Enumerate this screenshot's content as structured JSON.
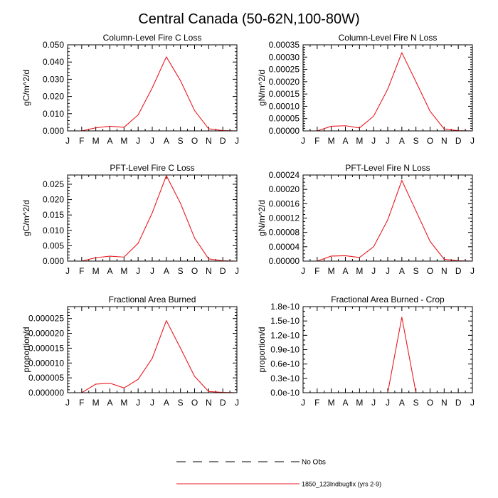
{
  "figure": {
    "title": "Central Canada (50-62N,100-80W)"
  },
  "legend": {
    "items": [
      {
        "label": "No Obs",
        "style": "dashed",
        "color": "#000000"
      },
      {
        "label": "1850_123lndbugfix (yrs 2-9)",
        "style": "solid",
        "color": "#e8191f"
      }
    ]
  },
  "colors": {
    "series": "#e8191f",
    "axis": "#000000"
  },
  "chart_data": [
    {
      "type": "line",
      "title": "Column-Level Fire C Loss",
      "xlabel": "",
      "ylabel": "gC/m^2/d",
      "categories": [
        "J",
        "F",
        "M",
        "A",
        "M",
        "J",
        "J",
        "A",
        "S",
        "O",
        "N",
        "D",
        "J"
      ],
      "ylim": [
        0,
        0.05
      ],
      "yticks": [
        {
          "value": 0,
          "label": "0.000"
        },
        {
          "value": 0.01,
          "label": "0.010"
        },
        {
          "value": 0.02,
          "label": "0.020"
        },
        {
          "value": 0.03,
          "label": "0.030"
        },
        {
          "value": 0.04,
          "label": "0.040"
        },
        {
          "value": 0.05,
          "label": "0.050"
        }
      ],
      "yminor": [
        0.002,
        0.004,
        0.006,
        0.008,
        0.012,
        0.014,
        0.016,
        0.018,
        0.022,
        0.024,
        0.026,
        0.028,
        0.032,
        0.034,
        0.036,
        0.038,
        0.042,
        0.044,
        0.046,
        0.048
      ],
      "series": [
        {
          "name": "1850_123lndbugfix (yrs 2-9)",
          "values": [
            0,
            0,
            0.0018,
            0.0027,
            0.0021,
            0.0093,
            0.025,
            0.043,
            0.0292,
            0.0118,
            0.0012,
            0.0002,
            0
          ]
        }
      ]
    },
    {
      "type": "line",
      "title": "Column-Level Fire N Loss",
      "xlabel": "",
      "ylabel": "gN/m^2/d",
      "categories": [
        "J",
        "F",
        "M",
        "A",
        "M",
        "J",
        "J",
        "A",
        "S",
        "O",
        "N",
        "D",
        "J"
      ],
      "ylim": [
        0,
        0.00035
      ],
      "yticks": [
        {
          "value": 0,
          "label": "0.00000"
        },
        {
          "value": 5e-05,
          "label": "0.00005"
        },
        {
          "value": 0.0001,
          "label": "0.00010"
        },
        {
          "value": 0.00015,
          "label": "0.00015"
        },
        {
          "value": 0.0002,
          "label": "0.00020"
        },
        {
          "value": 0.00025,
          "label": "0.00025"
        },
        {
          "value": 0.0003,
          "label": "0.00030"
        },
        {
          "value": 0.00035,
          "label": "0.00035"
        }
      ],
      "yminor": [
        1e-05,
        2e-05,
        3e-05,
        4e-05,
        6e-05,
        7e-05,
        8e-05,
        9e-05,
        0.00011,
        0.00012,
        0.00013,
        0.00014,
        0.00016,
        0.00017,
        0.00018,
        0.00019,
        0.00021,
        0.00022,
        0.00023,
        0.00024,
        0.00026,
        0.00027,
        0.00028,
        0.00029,
        0.00031,
        0.00032,
        0.00033,
        0.00034
      ],
      "series": [
        {
          "name": "1850_123lndbugfix (yrs 2-9)",
          "values": [
            0,
            0,
            1.9e-05,
            2.1e-05,
            1.2e-05,
            6e-05,
            0.00017,
            0.000318,
            0.0002,
            8e-05,
            8e-06,
            1e-06,
            0
          ]
        }
      ]
    },
    {
      "type": "line",
      "title": "PFT-Level Fire C Loss",
      "xlabel": "",
      "ylabel": "gC/m^2/d",
      "categories": [
        "J",
        "F",
        "M",
        "A",
        "M",
        "J",
        "J",
        "A",
        "S",
        "O",
        "N",
        "D",
        "J"
      ],
      "ylim": [
        0,
        0.028
      ],
      "yticks": [
        {
          "value": 0,
          "label": "0.000"
        },
        {
          "value": 0.005,
          "label": "0.005"
        },
        {
          "value": 0.01,
          "label": "0.010"
        },
        {
          "value": 0.015,
          "label": "0.015"
        },
        {
          "value": 0.02,
          "label": "0.020"
        },
        {
          "value": 0.025,
          "label": "0.025"
        }
      ],
      "yminor": [
        0.001,
        0.002,
        0.003,
        0.004,
        0.006,
        0.007,
        0.008,
        0.009,
        0.011,
        0.012,
        0.013,
        0.014,
        0.016,
        0.017,
        0.018,
        0.019,
        0.021,
        0.022,
        0.023,
        0.024,
        0.026,
        0.027
      ],
      "series": [
        {
          "name": "1850_123lndbugfix (yrs 2-9)",
          "values": [
            0,
            0,
            0.0011,
            0.0016,
            0.0013,
            0.0058,
            0.0157,
            0.0278,
            0.0188,
            0.0075,
            0.0007,
            0.0001,
            0
          ]
        }
      ]
    },
    {
      "type": "line",
      "title": "PFT-Level Fire N Loss",
      "xlabel": "",
      "ylabel": "gN/m^2/d",
      "categories": [
        "J",
        "F",
        "M",
        "A",
        "M",
        "J",
        "J",
        "A",
        "S",
        "O",
        "N",
        "D",
        "J"
      ],
      "ylim": [
        0,
        0.00024
      ],
      "yticks": [
        {
          "value": 0,
          "label": "0.00000"
        },
        {
          "value": 4e-05,
          "label": "0.00004"
        },
        {
          "value": 8e-05,
          "label": "0.00008"
        },
        {
          "value": 0.00012,
          "label": "0.00012"
        },
        {
          "value": 0.00016,
          "label": "0.00016"
        },
        {
          "value": 0.0002,
          "label": "0.00020"
        },
        {
          "value": 0.00024,
          "label": "0.00024"
        }
      ],
      "yminor": [
        1e-05,
        2e-05,
        3e-05,
        5e-05,
        6e-05,
        7e-05,
        9e-05,
        0.0001,
        0.00011,
        0.00013,
        0.00014,
        0.00015,
        0.00017,
        0.00018,
        0.00019,
        0.00021,
        0.00022,
        0.00023
      ],
      "series": [
        {
          "name": "1850_123lndbugfix (yrs 2-9)",
          "values": [
            0,
            0,
            1.4e-05,
            1.5e-05,
            1e-05,
            4e-05,
            0.000115,
            0.000225,
            0.00014,
            5.5e-05,
            5e-06,
            1e-06,
            0
          ]
        }
      ]
    },
    {
      "type": "line",
      "title": "Fractional Area Burned",
      "xlabel": "",
      "ylabel": "proportion/d",
      "categories": [
        "J",
        "F",
        "M",
        "A",
        "M",
        "J",
        "J",
        "A",
        "S",
        "O",
        "N",
        "D",
        "J"
      ],
      "ylim": [
        0,
        2.9e-05
      ],
      "yticks": [
        {
          "value": 0,
          "label": "0.000000"
        },
        {
          "value": 5e-06,
          "label": "0.000005"
        },
        {
          "value": 1e-05,
          "label": "0.000010"
        },
        {
          "value": 1.5e-05,
          "label": "0.000015"
        },
        {
          "value": 2e-05,
          "label": "0.000020"
        },
        {
          "value": 2.5e-05,
          "label": "0.000025"
        }
      ],
      "yminor": [
        1e-06,
        2e-06,
        3e-06,
        4e-06,
        6e-06,
        7e-06,
        8e-06,
        9e-06,
        1.1e-05,
        1.2e-05,
        1.3e-05,
        1.4e-05,
        1.6e-05,
        1.7e-05,
        1.8e-05,
        1.9e-05,
        2.1e-05,
        2.2e-05,
        2.3e-05,
        2.4e-05,
        2.6e-05,
        2.7e-05,
        2.8e-05
      ],
      "series": [
        {
          "name": "1850_123lndbugfix (yrs 2-9)",
          "values": [
            0,
            0,
            2.9e-06,
            3.2e-06,
            1.6e-06,
            4.5e-06,
            1.16e-05,
            2.43e-05,
            1.5e-05,
            5.5e-06,
            4e-07,
            1e-07,
            0
          ]
        }
      ]
    },
    {
      "type": "line",
      "title": "Fractional Area Burned - Crop",
      "xlabel": "",
      "ylabel": "proportion/d",
      "categories": [
        "J",
        "F",
        "M",
        "A",
        "M",
        "J",
        "J",
        "A",
        "S",
        "O",
        "N",
        "D",
        "J"
      ],
      "ylim": [
        0,
        1.8e-10
      ],
      "yticks": [
        {
          "value": 0,
          "label": "0.0e-10"
        },
        {
          "value": 3e-11,
          "label": "0.3e-10"
        },
        {
          "value": 6e-11,
          "label": "0.6e-10"
        },
        {
          "value": 9e-11,
          "label": "0.9e-10"
        },
        {
          "value": 1.2e-10,
          "label": "1.2e-10"
        },
        {
          "value": 1.5e-10,
          "label": "1.5e-10"
        },
        {
          "value": 1.8e-10,
          "label": "1.8e-10"
        }
      ],
      "yminor": [
        1e-11,
        2e-11,
        4e-11,
        5e-11,
        7e-11,
        8e-11,
        1e-10,
        1.1e-10,
        1.3e-10,
        1.4e-10,
        1.6e-10,
        1.7e-10
      ],
      "series": [
        {
          "name": "1850_123lndbugfix (yrs 2-9)",
          "values": [
            0,
            0,
            0,
            0,
            0,
            0,
            0,
            1.58e-10,
            0,
            0,
            0,
            0,
            0
          ]
        }
      ]
    }
  ]
}
